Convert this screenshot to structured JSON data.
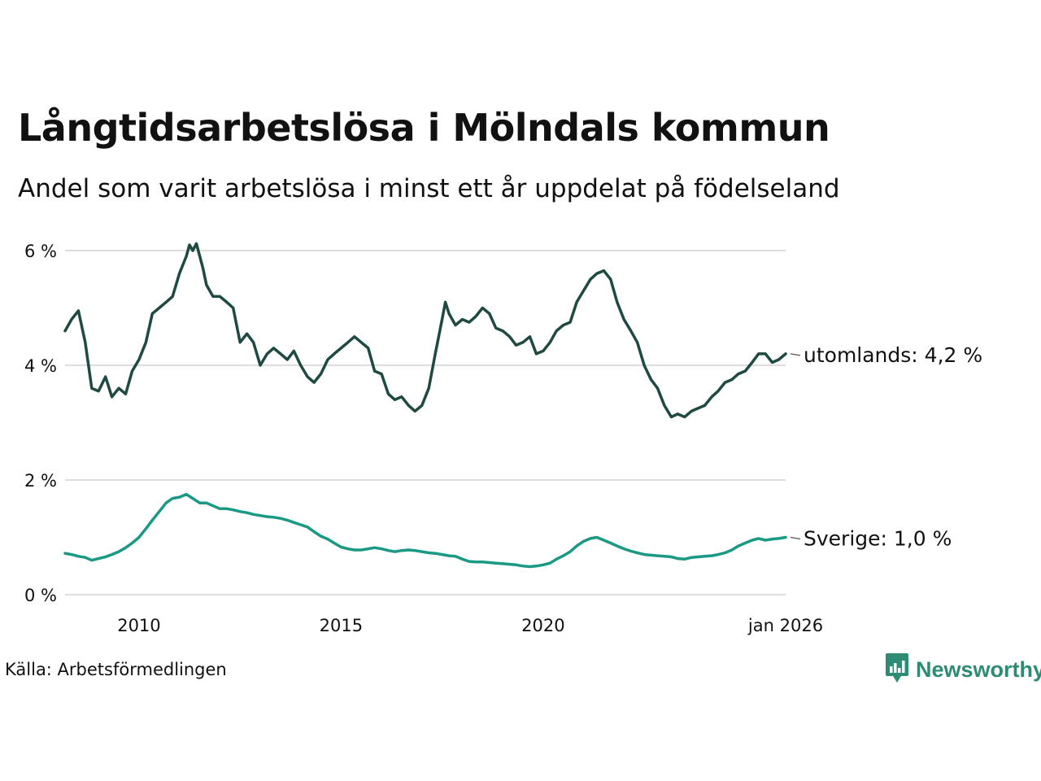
{
  "header": {
    "title": "Långtidsarbetslösa i Mölndals kommun",
    "subtitle": "Andel som varit arbetslösa i minst ett år uppdelat på födelseland"
  },
  "footer": {
    "source": "Källa: Arbetsförmedlingen",
    "brand": "Newsworthy",
    "brand_icon": "newsworthy-logo-icon"
  },
  "colors": {
    "utomlands": "#1f4a42",
    "sverige": "#1a9984",
    "grid": "#dddddd",
    "brand": "#2e8b74"
  },
  "chart_data": {
    "type": "line",
    "title": "Långtidsarbetslösa i Mölndals kommun",
    "subtitle": "Andel som varit arbetslösa i minst ett år uppdelat på födelseland",
    "xlabel": "",
    "ylabel": "",
    "x_range": [
      2008.17,
      2026.0
    ],
    "ylim": [
      0,
      6
    ],
    "y_ticks": [
      0,
      2,
      4,
      6
    ],
    "y_tick_labels": [
      "0 %",
      "2 %",
      "4 %",
      "6 %"
    ],
    "x_ticks": [
      2010,
      2015,
      2020,
      2026
    ],
    "x_tick_labels": [
      "2010",
      "2015",
      "2020",
      "jan 2026"
    ],
    "grid": true,
    "series": [
      {
        "name": "utomlands",
        "end_label": "utomlands: 4,2 %",
        "points": [
          [
            2008.17,
            4.6
          ],
          [
            2008.33,
            4.8
          ],
          [
            2008.5,
            4.95
          ],
          [
            2008.67,
            4.4
          ],
          [
            2008.83,
            3.6
          ],
          [
            2009.0,
            3.55
          ],
          [
            2009.17,
            3.8
          ],
          [
            2009.33,
            3.45
          ],
          [
            2009.5,
            3.6
          ],
          [
            2009.67,
            3.5
          ],
          [
            2009.83,
            3.9
          ],
          [
            2010.0,
            4.1
          ],
          [
            2010.17,
            4.4
          ],
          [
            2010.33,
            4.9
          ],
          [
            2010.5,
            5.0
          ],
          [
            2010.67,
            5.1
          ],
          [
            2010.83,
            5.2
          ],
          [
            2011.0,
            5.6
          ],
          [
            2011.17,
            5.9
          ],
          [
            2011.25,
            6.1
          ],
          [
            2011.33,
            6.0
          ],
          [
            2011.42,
            6.12
          ],
          [
            2011.58,
            5.7
          ],
          [
            2011.67,
            5.4
          ],
          [
            2011.83,
            5.2
          ],
          [
            2012.0,
            5.2
          ],
          [
            2012.17,
            5.1
          ],
          [
            2012.33,
            5.0
          ],
          [
            2012.5,
            4.4
          ],
          [
            2012.67,
            4.55
          ],
          [
            2012.83,
            4.4
          ],
          [
            2013.0,
            4.0
          ],
          [
            2013.17,
            4.2
          ],
          [
            2013.33,
            4.3
          ],
          [
            2013.5,
            4.2
          ],
          [
            2013.67,
            4.1
          ],
          [
            2013.83,
            4.25
          ],
          [
            2014.0,
            4.0
          ],
          [
            2014.17,
            3.8
          ],
          [
            2014.33,
            3.7
          ],
          [
            2014.5,
            3.85
          ],
          [
            2014.67,
            4.1
          ],
          [
            2014.83,
            4.2
          ],
          [
            2015.0,
            4.3
          ],
          [
            2015.17,
            4.4
          ],
          [
            2015.33,
            4.5
          ],
          [
            2015.5,
            4.4
          ],
          [
            2015.67,
            4.3
          ],
          [
            2015.83,
            3.9
          ],
          [
            2016.0,
            3.85
          ],
          [
            2016.17,
            3.5
          ],
          [
            2016.33,
            3.4
          ],
          [
            2016.5,
            3.45
          ],
          [
            2016.67,
            3.3
          ],
          [
            2016.83,
            3.2
          ],
          [
            2017.0,
            3.3
          ],
          [
            2017.17,
            3.6
          ],
          [
            2017.33,
            4.2
          ],
          [
            2017.5,
            4.8
          ],
          [
            2017.58,
            5.1
          ],
          [
            2017.67,
            4.9
          ],
          [
            2017.83,
            4.7
          ],
          [
            2018.0,
            4.8
          ],
          [
            2018.17,
            4.75
          ],
          [
            2018.33,
            4.85
          ],
          [
            2018.5,
            5.0
          ],
          [
            2018.67,
            4.9
          ],
          [
            2018.83,
            4.65
          ],
          [
            2019.0,
            4.6
          ],
          [
            2019.17,
            4.5
          ],
          [
            2019.33,
            4.35
          ],
          [
            2019.5,
            4.4
          ],
          [
            2019.67,
            4.5
          ],
          [
            2019.83,
            4.2
          ],
          [
            2020.0,
            4.25
          ],
          [
            2020.17,
            4.4
          ],
          [
            2020.33,
            4.6
          ],
          [
            2020.5,
            4.7
          ],
          [
            2020.67,
            4.75
          ],
          [
            2020.83,
            5.1
          ],
          [
            2021.0,
            5.3
          ],
          [
            2021.17,
            5.5
          ],
          [
            2021.33,
            5.6
          ],
          [
            2021.5,
            5.65
          ],
          [
            2021.67,
            5.5
          ],
          [
            2021.83,
            5.1
          ],
          [
            2022.0,
            4.8
          ],
          [
            2022.17,
            4.6
          ],
          [
            2022.33,
            4.4
          ],
          [
            2022.5,
            4.0
          ],
          [
            2022.67,
            3.75
          ],
          [
            2022.83,
            3.6
          ],
          [
            2023.0,
            3.3
          ],
          [
            2023.17,
            3.1
          ],
          [
            2023.33,
            3.15
          ],
          [
            2023.5,
            3.1
          ],
          [
            2023.67,
            3.2
          ],
          [
            2023.83,
            3.25
          ],
          [
            2024.0,
            3.3
          ],
          [
            2024.17,
            3.45
          ],
          [
            2024.33,
            3.55
          ],
          [
            2024.5,
            3.7
          ],
          [
            2024.67,
            3.75
          ],
          [
            2024.83,
            3.85
          ],
          [
            2025.0,
            3.9
          ],
          [
            2025.17,
            4.05
          ],
          [
            2025.33,
            4.2
          ],
          [
            2025.5,
            4.2
          ],
          [
            2025.67,
            4.05
          ],
          [
            2025.83,
            4.1
          ],
          [
            2026.0,
            4.2
          ]
        ]
      },
      {
        "name": "Sverige",
        "end_label": "Sverige: 1,0 %",
        "points": [
          [
            2008.17,
            0.72
          ],
          [
            2008.33,
            0.7
          ],
          [
            2008.5,
            0.67
          ],
          [
            2008.67,
            0.65
          ],
          [
            2008.83,
            0.6
          ],
          [
            2009.0,
            0.63
          ],
          [
            2009.17,
            0.66
          ],
          [
            2009.33,
            0.7
          ],
          [
            2009.5,
            0.75
          ],
          [
            2009.67,
            0.82
          ],
          [
            2009.83,
            0.9
          ],
          [
            2010.0,
            1.0
          ],
          [
            2010.17,
            1.15
          ],
          [
            2010.33,
            1.3
          ],
          [
            2010.5,
            1.45
          ],
          [
            2010.67,
            1.6
          ],
          [
            2010.83,
            1.68
          ],
          [
            2011.0,
            1.7
          ],
          [
            2011.17,
            1.75
          ],
          [
            2011.33,
            1.68
          ],
          [
            2011.5,
            1.6
          ],
          [
            2011.67,
            1.6
          ],
          [
            2011.83,
            1.55
          ],
          [
            2012.0,
            1.5
          ],
          [
            2012.17,
            1.5
          ],
          [
            2012.33,
            1.48
          ],
          [
            2012.5,
            1.45
          ],
          [
            2012.67,
            1.43
          ],
          [
            2012.83,
            1.4
          ],
          [
            2013.0,
            1.38
          ],
          [
            2013.17,
            1.36
          ],
          [
            2013.33,
            1.35
          ],
          [
            2013.5,
            1.33
          ],
          [
            2013.67,
            1.3
          ],
          [
            2013.83,
            1.26
          ],
          [
            2014.0,
            1.22
          ],
          [
            2014.17,
            1.18
          ],
          [
            2014.33,
            1.1
          ],
          [
            2014.5,
            1.02
          ],
          [
            2014.67,
            0.97
          ],
          [
            2014.83,
            0.9
          ],
          [
            2015.0,
            0.83
          ],
          [
            2015.17,
            0.8
          ],
          [
            2015.33,
            0.78
          ],
          [
            2015.5,
            0.78
          ],
          [
            2015.67,
            0.8
          ],
          [
            2015.83,
            0.82
          ],
          [
            2016.0,
            0.8
          ],
          [
            2016.17,
            0.77
          ],
          [
            2016.33,
            0.75
          ],
          [
            2016.5,
            0.77
          ],
          [
            2016.67,
            0.78
          ],
          [
            2016.83,
            0.77
          ],
          [
            2017.0,
            0.75
          ],
          [
            2017.17,
            0.73
          ],
          [
            2017.33,
            0.72
          ],
          [
            2017.5,
            0.7
          ],
          [
            2017.67,
            0.68
          ],
          [
            2017.83,
            0.67
          ],
          [
            2018.0,
            0.62
          ],
          [
            2018.17,
            0.58
          ],
          [
            2018.33,
            0.57
          ],
          [
            2018.5,
            0.57
          ],
          [
            2018.67,
            0.56
          ],
          [
            2018.83,
            0.55
          ],
          [
            2019.0,
            0.54
          ],
          [
            2019.17,
            0.53
          ],
          [
            2019.33,
            0.52
          ],
          [
            2019.5,
            0.5
          ],
          [
            2019.67,
            0.49
          ],
          [
            2019.83,
            0.5
          ],
          [
            2020.0,
            0.52
          ],
          [
            2020.17,
            0.55
          ],
          [
            2020.33,
            0.62
          ],
          [
            2020.5,
            0.68
          ],
          [
            2020.67,
            0.75
          ],
          [
            2020.83,
            0.85
          ],
          [
            2021.0,
            0.93
          ],
          [
            2021.17,
            0.98
          ],
          [
            2021.33,
            1.0
          ],
          [
            2021.5,
            0.95
          ],
          [
            2021.67,
            0.9
          ],
          [
            2021.83,
            0.85
          ],
          [
            2022.0,
            0.8
          ],
          [
            2022.17,
            0.76
          ],
          [
            2022.33,
            0.73
          ],
          [
            2022.5,
            0.7
          ],
          [
            2022.67,
            0.69
          ],
          [
            2022.83,
            0.68
          ],
          [
            2023.0,
            0.67
          ],
          [
            2023.17,
            0.66
          ],
          [
            2023.33,
            0.63
          ],
          [
            2023.5,
            0.62
          ],
          [
            2023.67,
            0.65
          ],
          [
            2023.83,
            0.66
          ],
          [
            2024.0,
            0.67
          ],
          [
            2024.17,
            0.68
          ],
          [
            2024.33,
            0.7
          ],
          [
            2024.5,
            0.73
          ],
          [
            2024.67,
            0.78
          ],
          [
            2024.83,
            0.85
          ],
          [
            2025.0,
            0.9
          ],
          [
            2025.17,
            0.95
          ],
          [
            2025.33,
            0.98
          ],
          [
            2025.5,
            0.95
          ],
          [
            2025.67,
            0.97
          ],
          [
            2025.83,
            0.98
          ],
          [
            2026.0,
            1.0
          ]
        ]
      }
    ]
  }
}
